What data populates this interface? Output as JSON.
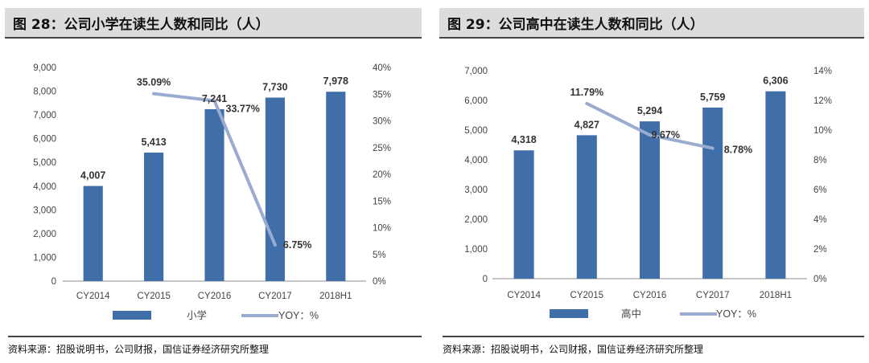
{
  "colors": {
    "bar": "#3f6ea8",
    "line": "#9aabd0",
    "axis": "#8c8c8c",
    "label": "#444444"
  },
  "charts": [
    {
      "title": "图 28：公司小学在读生人数和同比（人）",
      "source": "资料来源：招股说明书，公司财报，国信证券经济研究所整理",
      "bar_legend": "小学",
      "line_legend": "YOY：%"
    },
    {
      "title": "图 29：公司高中在读生人数和同比（人）",
      "source": "资料来源：招股说明书，公司财报，国信证券经济研究所整理",
      "bar_legend": "高中",
      "line_legend": "YOY：%"
    }
  ],
  "chart_data": [
    {
      "type": "bar",
      "title": "图 28：公司小学在读生人数和同比（人）",
      "categories": [
        "CY2014",
        "CY2015",
        "CY2016",
        "CY2017",
        "2018H1"
      ],
      "series": [
        {
          "name": "小学",
          "type": "bar",
          "axis": "left",
          "values": [
            4007,
            5413,
            7241,
            7730,
            7978
          ],
          "labels": [
            "4,007",
            "5,413",
            "7,241",
            "7,730",
            "7,978"
          ]
        },
        {
          "name": "YOY：%",
          "type": "line",
          "axis": "right",
          "values": [
            null,
            35.09,
            33.77,
            6.75,
            null
          ],
          "labels": [
            "",
            "35.09%",
            "33.77%",
            "6.75%",
            ""
          ]
        }
      ],
      "ylim_left": [
        0,
        9000
      ],
      "yticks_left": [
        "0",
        "1,000",
        "2,000",
        "3,000",
        "4,000",
        "5,000",
        "6,000",
        "7,000",
        "8,000",
        "9,000"
      ],
      "ylim_right": [
        0,
        40
      ],
      "yticks_right": [
        "0%",
        "5%",
        "10%",
        "15%",
        "20%",
        "25%",
        "30%",
        "35%",
        "40%"
      ],
      "legend": "bottom",
      "grid": false
    },
    {
      "type": "bar",
      "title": "图 29：公司高中在读生人数和同比（人）",
      "categories": [
        "CY2014",
        "CY2015",
        "CY2016",
        "CY2017",
        "2018H1"
      ],
      "series": [
        {
          "name": "高中",
          "type": "bar",
          "axis": "left",
          "values": [
            4318,
            4827,
            5294,
            5759,
            6306
          ],
          "labels": [
            "4,318",
            "4,827",
            "5,294",
            "5,759",
            "6,306"
          ]
        },
        {
          "name": "YOY：%",
          "type": "line",
          "axis": "right",
          "values": [
            null,
            11.79,
            9.67,
            8.78,
            null
          ],
          "labels": [
            "",
            "11.79%",
            "9.67%",
            "8.78%",
            ""
          ]
        }
      ],
      "ylim_left": [
        0,
        7000
      ],
      "yticks_left": [
        "0",
        "1,000",
        "2,000",
        "3,000",
        "4,000",
        "5,000",
        "6,000",
        "7,000"
      ],
      "ylim_right": [
        0,
        14
      ],
      "yticks_right": [
        "0%",
        "2%",
        "4%",
        "6%",
        "8%",
        "10%",
        "12%",
        "14%"
      ],
      "legend": "bottom",
      "grid": false
    }
  ]
}
